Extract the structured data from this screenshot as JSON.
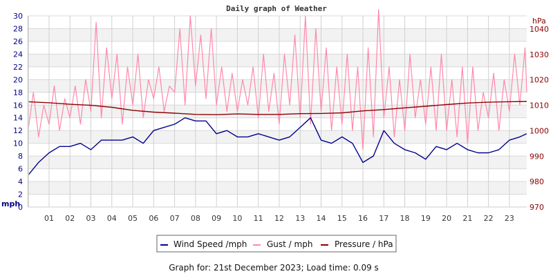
{
  "chart_data": {
    "type": "line",
    "title": "Daily graph of Weather",
    "ylabel_left": "mph",
    "ylabel_right": "hPa",
    "ylim_left": [
      0,
      30
    ],
    "ylim_right": [
      970,
      1042
    ],
    "yticks_left": [
      "0",
      "2",
      "4",
      "6",
      "8",
      "10",
      "12",
      "14",
      "16",
      "18",
      "20",
      "22",
      "24",
      "26",
      "28",
      "30"
    ],
    "yticks_right": [
      "970",
      "980",
      "990",
      "1000",
      "1010",
      "1020",
      "1030",
      "1040"
    ],
    "xlim_hours": [
      0,
      24
    ],
    "xticks": [
      "01",
      "02",
      "03",
      "04",
      "05",
      "06",
      "07",
      "08",
      "09",
      "10",
      "11",
      "12",
      "13",
      "14",
      "15",
      "16",
      "17",
      "18",
      "19",
      "20",
      "21",
      "22",
      "23"
    ],
    "grid": true,
    "legend_placement": "bottom",
    "series": [
      {
        "name": "Wind Speed /mph",
        "axis": "left",
        "color": "#00008b",
        "interval_hours": 0.5,
        "values": [
          5,
          7,
          8.5,
          9.5,
          9.5,
          10,
          9,
          10.5,
          10.5,
          10.5,
          11,
          10,
          12,
          12.5,
          13,
          14,
          13.5,
          13.5,
          11.5,
          12,
          11,
          11,
          11.5,
          11,
          10.5,
          11,
          12.5,
          14,
          10.5,
          10,
          11,
          10,
          7,
          8,
          12,
          10,
          9,
          8.5,
          7.5,
          9.5,
          9,
          10,
          9,
          8.5,
          8.5,
          9,
          10.5,
          11,
          11.5
        ]
      },
      {
        "name": "Gust / mph",
        "axis": "left",
        "color": "#ff88aa",
        "interval_hours": 0.25,
        "values": [
          12,
          18,
          11,
          16,
          13,
          19,
          12,
          17,
          14,
          19,
          13,
          20,
          15,
          29,
          14,
          25,
          17,
          24,
          13,
          22,
          16,
          24,
          14,
          20,
          17,
          22,
          15,
          19,
          18,
          28,
          16,
          30,
          19,
          27,
          17,
          28,
          16,
          22,
          15,
          21,
          15,
          20,
          16,
          22,
          14,
          24,
          15,
          21,
          13,
          24,
          16,
          27,
          14,
          30,
          13,
          28,
          15,
          25,
          12,
          22,
          13,
          24,
          12,
          22,
          9,
          25,
          11,
          31,
          14,
          22,
          11,
          20,
          12,
          24,
          14,
          20,
          13,
          22,
          12,
          24,
          12,
          20,
          11,
          22,
          10,
          22,
          12,
          18,
          14,
          21,
          12,
          20,
          15,
          24,
          16,
          25,
          18
        ]
      },
      {
        "name": "Pressure / hPa",
        "axis": "right",
        "color": "#8b0000",
        "interval_hours": 1,
        "values": [
          1011.4,
          1011.0,
          1010.4,
          1010.0,
          1009.2,
          1008.0,
          1007.3,
          1006.9,
          1006.4,
          1006.3,
          1006.6,
          1006.4,
          1006.4,
          1006.7,
          1006.8,
          1007.0,
          1007.8,
          1008.3,
          1009.0,
          1009.6,
          1010.3,
          1010.9,
          1011.2,
          1011.4,
          1011.5
        ]
      }
    ]
  },
  "footer": "Graph for: 21st December 2023; Load time: 0.09 s"
}
